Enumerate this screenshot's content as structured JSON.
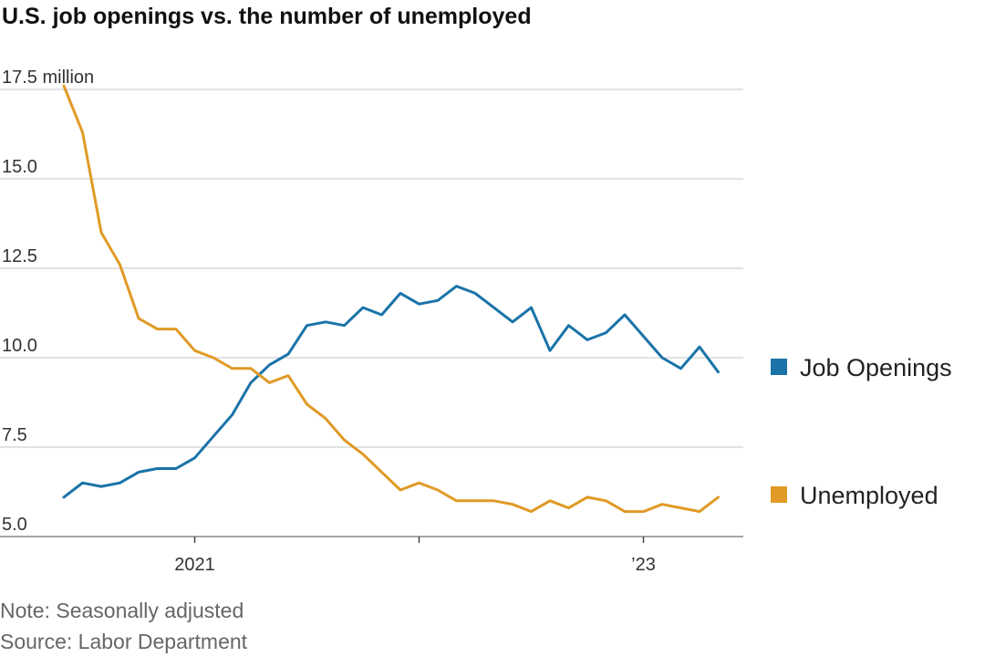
{
  "title": "U.S. job openings vs. the number of unemployed",
  "note": "Note: Seasonally adjusted",
  "source": "Source: Labor Department",
  "colors": {
    "job_openings": "#1a73a8",
    "unemployed": "#e09a25",
    "grid": "#d9d9d9",
    "axis": "#888888"
  },
  "chart_data": {
    "type": "line",
    "x": [
      "2020-06",
      "2020-07",
      "2020-08",
      "2020-09",
      "2020-10",
      "2020-11",
      "2020-12",
      "2021-01",
      "2021-02",
      "2021-03",
      "2021-04",
      "2021-05",
      "2021-06",
      "2021-07",
      "2021-08",
      "2021-09",
      "2021-10",
      "2021-11",
      "2021-12",
      "2022-01",
      "2022-02",
      "2022-03",
      "2022-04",
      "2022-05",
      "2022-06",
      "2022-07",
      "2022-08",
      "2022-09",
      "2022-10",
      "2022-11",
      "2022-12",
      "2023-01",
      "2023-02",
      "2023-03",
      "2023-04",
      "2023-05"
    ],
    "series": [
      {
        "name": "Job Openings",
        "color": "#1a73a8",
        "values": [
          6.1,
          6.5,
          6.4,
          6.5,
          6.8,
          6.9,
          6.9,
          7.2,
          7.8,
          8.4,
          9.3,
          9.8,
          10.1,
          10.9,
          11.0,
          10.9,
          11.4,
          11.2,
          11.8,
          11.5,
          11.6,
          12.0,
          11.8,
          11.4,
          11.0,
          11.4,
          10.2,
          10.9,
          10.5,
          10.7,
          11.2,
          10.6,
          10.0,
          9.7,
          10.3,
          9.6
        ]
      },
      {
        "name": "Unemployed",
        "color": "#e09a25",
        "values": [
          17.6,
          16.3,
          13.5,
          12.6,
          11.1,
          10.8,
          10.8,
          10.2,
          10.0,
          9.7,
          9.7,
          9.3,
          9.5,
          8.7,
          8.3,
          7.7,
          7.3,
          6.8,
          6.3,
          6.5,
          6.3,
          6.0,
          6.0,
          6.0,
          5.9,
          5.7,
          6.0,
          5.8,
          6.1,
          6.0,
          5.7,
          5.7,
          5.9,
          5.8,
          5.7,
          6.1
        ]
      }
    ],
    "y_ticks": [
      {
        "value": 5.0,
        "label": "5.0"
      },
      {
        "value": 7.5,
        "label": "7.5"
      },
      {
        "value": 10.0,
        "label": "10.0"
      },
      {
        "value": 12.5,
        "label": "12.5"
      },
      {
        "value": 15.0,
        "label": "15.0"
      },
      {
        "value": 17.5,
        "label": "17.5 million"
      }
    ],
    "x_ticks": [
      {
        "x": "2021-01",
        "label": "2021"
      },
      {
        "x": "2022-01",
        "label": ""
      },
      {
        "x": "2023-01",
        "label": "’23"
      }
    ],
    "ylim": [
      5.0,
      17.5
    ],
    "grid": true,
    "legend_position": "right",
    "xlabel": "",
    "ylabel": ""
  }
}
